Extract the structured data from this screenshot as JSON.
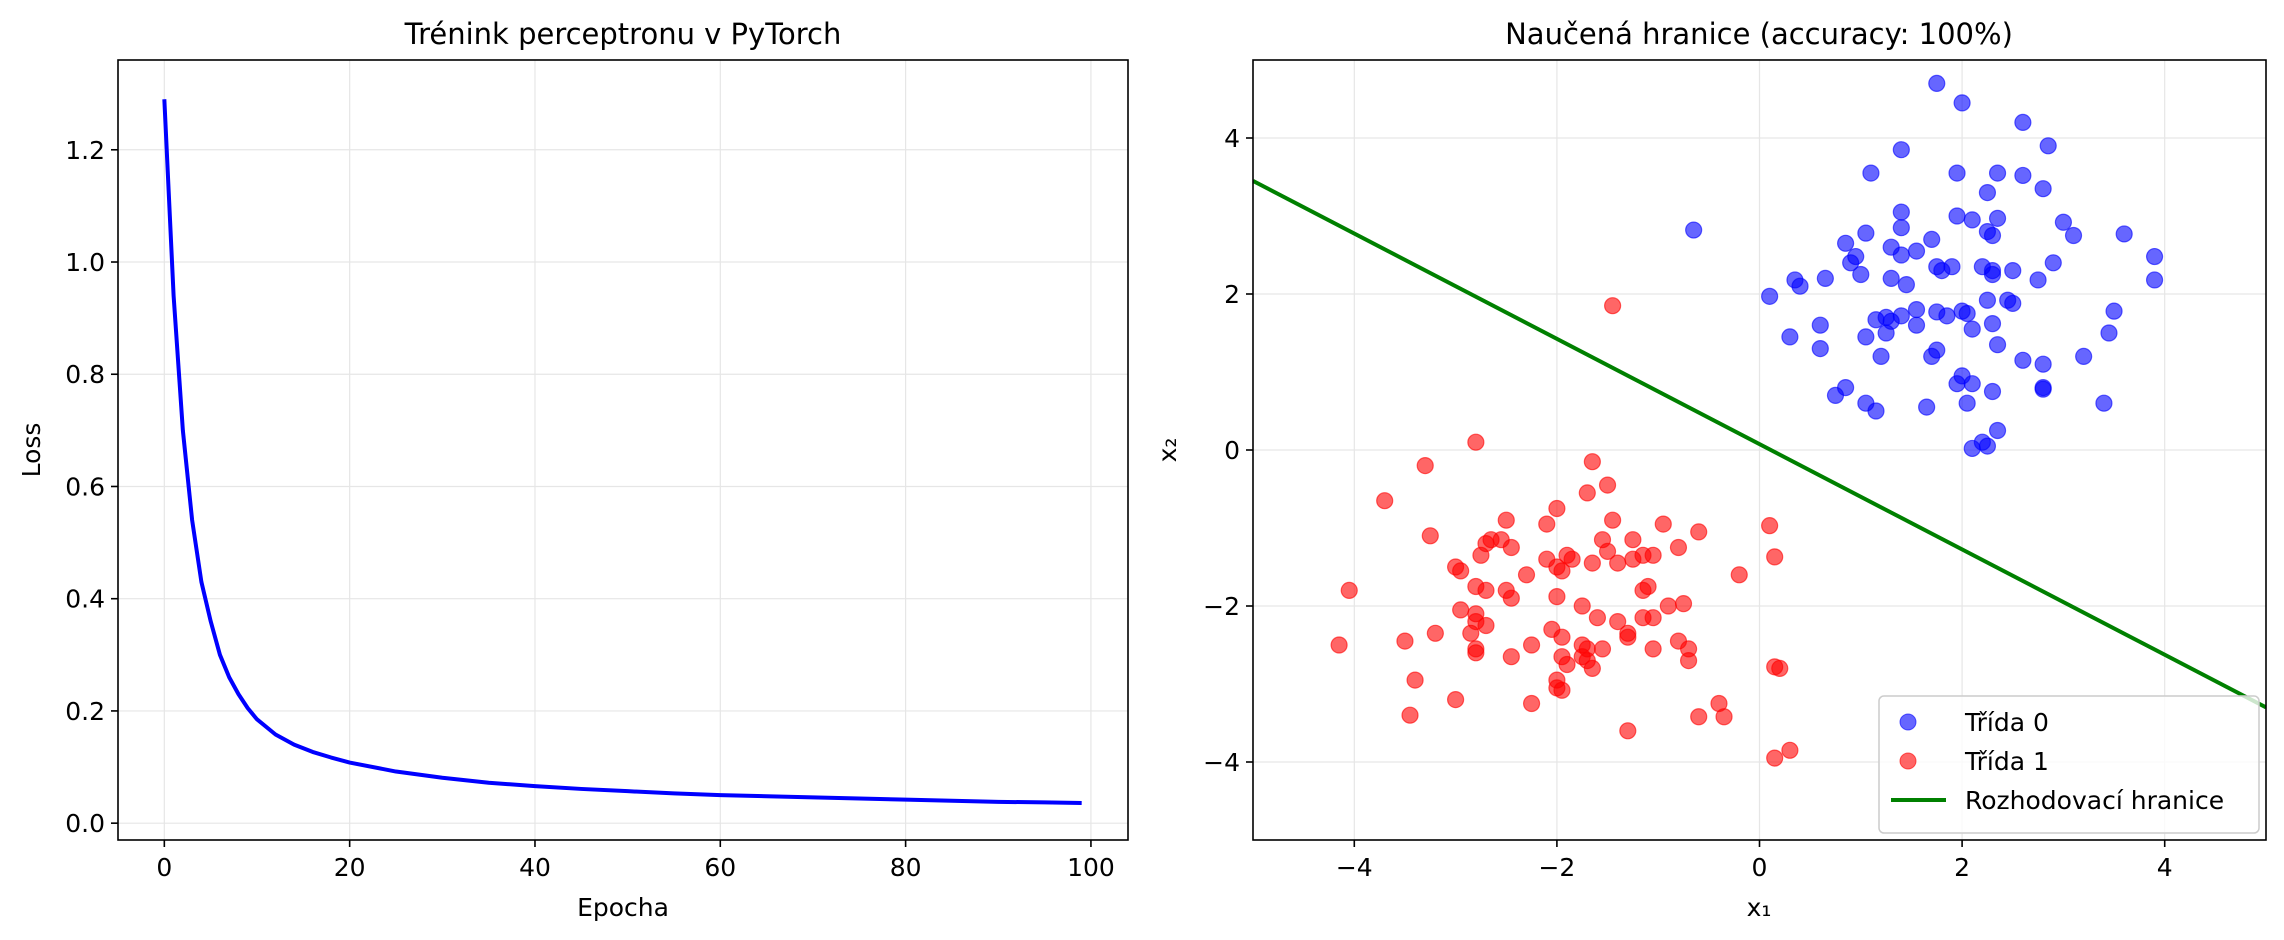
{
  "colors": {
    "loss_line": "#0000ff",
    "class0": "#0000ff",
    "class1": "#ff0000",
    "boundary": "#008000",
    "grid": "#e6e6e6",
    "axes": "#000000"
  },
  "chart_data": [
    {
      "type": "line",
      "title": "Trénink perceptronu v PyTorch",
      "xlabel": "Epocha",
      "ylabel": "Loss",
      "xlim": [
        -5,
        104
      ],
      "ylim": [
        -0.03,
        1.36
      ],
      "grid": true,
      "xticks": [
        0,
        20,
        40,
        60,
        80,
        100
      ],
      "yticks": [
        0.0,
        0.2,
        0.4,
        0.6,
        0.8,
        1.0,
        1.2
      ],
      "xtick_labels": [
        "0",
        "20",
        "40",
        "60",
        "80",
        "100"
      ],
      "ytick_labels": [
        "0.0",
        "0.2",
        "0.4",
        "0.6",
        "0.8",
        "1.0",
        "1.2"
      ],
      "series": [
        {
          "color": "#0000ff",
          "x": [
            0,
            1,
            2,
            3,
            4,
            5,
            6,
            7,
            8,
            9,
            10,
            12,
            14,
            16,
            18,
            20,
            25,
            30,
            35,
            40,
            45,
            50,
            55,
            60,
            65,
            70,
            75,
            80,
            85,
            90,
            95,
            99
          ],
          "y": [
            1.29,
            0.94,
            0.7,
            0.54,
            0.43,
            0.36,
            0.3,
            0.26,
            0.23,
            0.205,
            0.185,
            0.158,
            0.14,
            0.127,
            0.117,
            0.108,
            0.092,
            0.081,
            0.072,
            0.066,
            0.061,
            0.057,
            0.053,
            0.05,
            0.048,
            0.046,
            0.044,
            0.042,
            0.04,
            0.038,
            0.037,
            0.036
          ]
        }
      ]
    },
    {
      "type": "scatter",
      "title": "Naučená hranice (accuracy: 100%)",
      "xlabel": "x₁",
      "ylabel": "x₂",
      "xlim": [
        -5,
        5
      ],
      "ylim": [
        -5,
        5
      ],
      "grid": true,
      "xticks": [
        -4,
        -2,
        0,
        2,
        4
      ],
      "yticks": [
        -4,
        -2,
        0,
        2,
        4
      ],
      "xtick_labels": [
        "−4",
        "−2",
        "0",
        "2",
        "4"
      ],
      "ytick_labels": [
        "−4",
        "−2",
        "0",
        "2",
        "4"
      ],
      "legend_placement": "lower-right",
      "series": [
        {
          "name": "Třída 0",
          "color": "#0000ff",
          "points": [
            [
              1.75,
              4.7
            ],
            [
              2.0,
              4.45
            ],
            [
              2.6,
              4.2
            ],
            [
              1.4,
              3.85
            ],
            [
              2.85,
              3.9
            ],
            [
              1.1,
              3.55
            ],
            [
              1.95,
              3.55
            ],
            [
              2.6,
              3.52
            ],
            [
              2.35,
              3.55
            ],
            [
              2.8,
              3.35
            ],
            [
              2.25,
              3.3
            ],
            [
              1.4,
              3.05
            ],
            [
              1.95,
              3.0
            ],
            [
              2.1,
              2.95
            ],
            [
              2.35,
              2.97
            ],
            [
              3.0,
              2.92
            ],
            [
              1.4,
              2.85
            ],
            [
              1.05,
              2.78
            ],
            [
              2.25,
              2.8
            ],
            [
              2.3,
              2.75
            ],
            [
              3.1,
              2.75
            ],
            [
              3.6,
              2.77
            ],
            [
              -0.65,
              2.82
            ],
            [
              0.85,
              2.65
            ],
            [
              1.3,
              2.6
            ],
            [
              1.4,
              2.5
            ],
            [
              1.55,
              2.55
            ],
            [
              0.95,
              2.48
            ],
            [
              0.9,
              2.4
            ],
            [
              1.7,
              2.7
            ],
            [
              1.75,
              2.35
            ],
            [
              1.8,
              2.3
            ],
            [
              1.9,
              2.35
            ],
            [
              2.2,
              2.35
            ],
            [
              2.3,
              2.3
            ],
            [
              2.3,
              2.25
            ],
            [
              2.5,
              2.3
            ],
            [
              2.9,
              2.4
            ],
            [
              3.9,
              2.48
            ],
            [
              0.65,
              2.2
            ],
            [
              1.0,
              2.25
            ],
            [
              1.3,
              2.2
            ],
            [
              1.45,
              2.12
            ],
            [
              0.35,
              2.18
            ],
            [
              0.4,
              2.1
            ],
            [
              2.75,
              2.18
            ],
            [
              3.9,
              2.18
            ],
            [
              0.1,
              1.97
            ],
            [
              2.25,
              1.92
            ],
            [
              2.45,
              1.92
            ],
            [
              2.5,
              1.88
            ],
            [
              1.25,
              1.7
            ],
            [
              1.4,
              1.72
            ],
            [
              1.55,
              1.8
            ],
            [
              1.75,
              1.77
            ],
            [
              1.85,
              1.72
            ],
            [
              2.0,
              1.78
            ],
            [
              2.05,
              1.75
            ],
            [
              1.15,
              1.67
            ],
            [
              1.3,
              1.65
            ],
            [
              2.3,
              1.62
            ],
            [
              3.5,
              1.78
            ],
            [
              0.6,
              1.6
            ],
            [
              1.25,
              1.5
            ],
            [
              1.55,
              1.6
            ],
            [
              2.1,
              1.55
            ],
            [
              0.3,
              1.45
            ],
            [
              0.6,
              1.3
            ],
            [
              1.05,
              1.45
            ],
            [
              1.75,
              1.28
            ],
            [
              2.35,
              1.35
            ],
            [
              1.7,
              1.2
            ],
            [
              2.6,
              1.15
            ],
            [
              2.8,
              1.1
            ],
            [
              3.2,
              1.2
            ],
            [
              3.45,
              1.5
            ],
            [
              1.2,
              1.2
            ],
            [
              2.0,
              0.95
            ],
            [
              1.95,
              0.85
            ],
            [
              2.1,
              0.85
            ],
            [
              2.3,
              0.75
            ],
            [
              2.8,
              0.8
            ],
            [
              2.8,
              0.78
            ],
            [
              0.75,
              0.7
            ],
            [
              0.85,
              0.8
            ],
            [
              1.05,
              0.6
            ],
            [
              1.15,
              0.5
            ],
            [
              1.65,
              0.55
            ],
            [
              2.05,
              0.6
            ],
            [
              3.4,
              0.6
            ],
            [
              2.35,
              0.25
            ],
            [
              2.2,
              0.1
            ],
            [
              2.25,
              0.05
            ],
            [
              2.1,
              0.02
            ]
          ]
        },
        {
          "name": "Třída 1",
          "color": "#ff0000",
          "points": [
            [
              -1.45,
              1.85
            ],
            [
              -2.8,
              0.1
            ],
            [
              -3.3,
              -0.2
            ],
            [
              -1.65,
              -0.15
            ],
            [
              -1.7,
              -0.55
            ],
            [
              -1.5,
              -0.45
            ],
            [
              -3.7,
              -0.65
            ],
            [
              -2.0,
              -0.75
            ],
            [
              -2.1,
              -0.95
            ],
            [
              -2.5,
              -0.9
            ],
            [
              -1.45,
              -0.9
            ],
            [
              -0.95,
              -0.95
            ],
            [
              0.1,
              -0.97
            ],
            [
              -3.25,
              -1.1
            ],
            [
              -2.65,
              -1.15
            ],
            [
              -2.7,
              -1.2
            ],
            [
              -2.55,
              -1.15
            ],
            [
              -1.55,
              -1.15
            ],
            [
              -1.5,
              -1.3
            ],
            [
              -1.25,
              -1.15
            ],
            [
              -0.6,
              -1.05
            ],
            [
              -0.8,
              -1.25
            ],
            [
              -2.45,
              -1.25
            ],
            [
              -2.75,
              -1.35
            ],
            [
              -2.1,
              -1.4
            ],
            [
              -1.9,
              -1.35
            ],
            [
              -1.85,
              -1.4
            ],
            [
              -1.65,
              -1.45
            ],
            [
              -1.4,
              -1.45
            ],
            [
              -1.15,
              -1.35
            ],
            [
              -1.25,
              -1.4
            ],
            [
              -1.05,
              -1.35
            ],
            [
              0.15,
              -1.37
            ],
            [
              -2.95,
              -1.55
            ],
            [
              -3.0,
              -1.5
            ],
            [
              -2.0,
              -1.5
            ],
            [
              -1.95,
              -1.55
            ],
            [
              -2.3,
              -1.6
            ],
            [
              -0.2,
              -1.6
            ],
            [
              -4.05,
              -1.8
            ],
            [
              -2.8,
              -1.75
            ],
            [
              -2.7,
              -1.8
            ],
            [
              -2.5,
              -1.8
            ],
            [
              -2.45,
              -1.9
            ],
            [
              -2.0,
              -1.88
            ],
            [
              -1.1,
              -1.75
            ],
            [
              -1.15,
              -1.8
            ],
            [
              -1.75,
              -2.0
            ],
            [
              -0.9,
              -2.0
            ],
            [
              -0.75,
              -1.97
            ],
            [
              -2.95,
              -2.05
            ],
            [
              -2.8,
              -2.1
            ],
            [
              -2.8,
              -2.2
            ],
            [
              -2.7,
              -2.25
            ],
            [
              -1.6,
              -2.15
            ],
            [
              -1.4,
              -2.2
            ],
            [
              -1.05,
              -2.15
            ],
            [
              -1.15,
              -2.15
            ],
            [
              -3.2,
              -2.35
            ],
            [
              -2.85,
              -2.35
            ],
            [
              -2.05,
              -2.3
            ],
            [
              -1.95,
              -2.4
            ],
            [
              -1.3,
              -2.35
            ],
            [
              -1.3,
              -2.4
            ],
            [
              -3.5,
              -2.45
            ],
            [
              -4.15,
              -2.5
            ],
            [
              -2.25,
              -2.5
            ],
            [
              -1.7,
              -2.55
            ],
            [
              -1.75,
              -2.5
            ],
            [
              -1.55,
              -2.55
            ],
            [
              -1.05,
              -2.55
            ],
            [
              -0.8,
              -2.45
            ],
            [
              -0.7,
              -2.55
            ],
            [
              -0.7,
              -2.7
            ],
            [
              -2.8,
              -2.55
            ],
            [
              -2.8,
              -2.6
            ],
            [
              -2.45,
              -2.65
            ],
            [
              -1.95,
              -2.65
            ],
            [
              -1.9,
              -2.75
            ],
            [
              -1.75,
              -2.65
            ],
            [
              -1.7,
              -2.7
            ],
            [
              -1.65,
              -2.8
            ],
            [
              0.15,
              -2.78
            ],
            [
              0.2,
              -2.8
            ],
            [
              -3.4,
              -2.95
            ],
            [
              -2.0,
              -2.95
            ],
            [
              -2.0,
              -3.05
            ],
            [
              -1.95,
              -3.08
            ],
            [
              -2.25,
              -3.25
            ],
            [
              -0.4,
              -3.25
            ],
            [
              -3.0,
              -3.2
            ],
            [
              -3.45,
              -3.4
            ],
            [
              -0.6,
              -3.42
            ],
            [
              -0.35,
              -3.42
            ],
            [
              -1.3,
              -3.6
            ],
            [
              0.3,
              -3.85
            ],
            [
              0.15,
              -3.95
            ]
          ]
        },
        {
          "name": "Rozhodovací hranice",
          "type": "line",
          "color": "#008000",
          "x": [
            -5,
            5
          ],
          "y": [
            3.45,
            -3.3
          ]
        }
      ]
    }
  ]
}
